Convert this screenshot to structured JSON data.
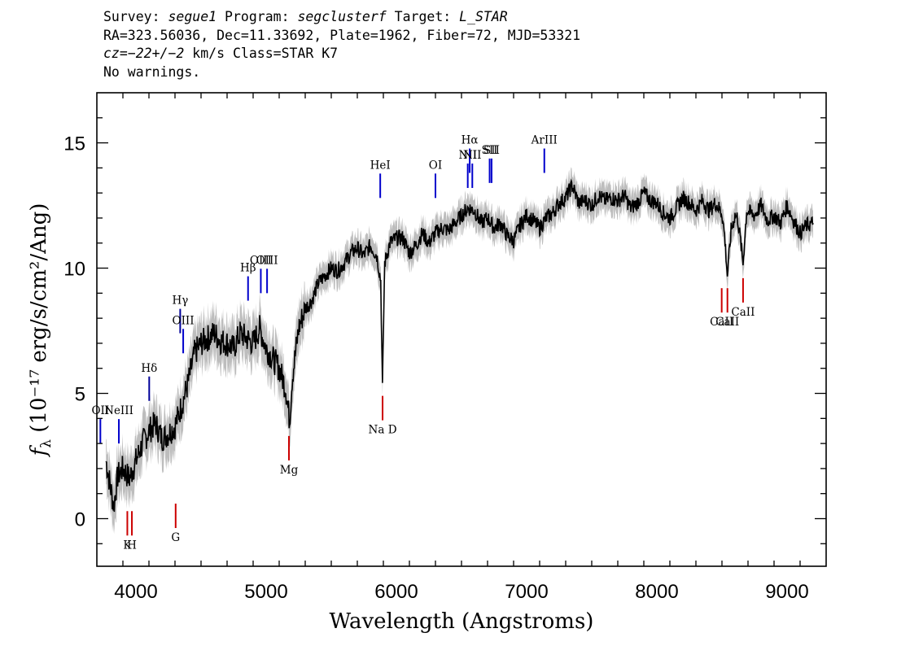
{
  "header": {
    "survey_label": "Survey: ",
    "survey": "segue1",
    "program_label": " Program: ",
    "program": "segclusterf",
    "target_label": " Target: ",
    "target": "L_STAR",
    "line2": "RA=323.56036, Dec=11.33692, Plate=1962, Fiber=72, MJD=53321",
    "cz_label": "cz=",
    "cz_value": "−22+/−2",
    "cz_rest": " km/s Class=STAR K7",
    "line4": "No warnings."
  },
  "chart_data": {
    "type": "line",
    "xlabel": "Wavelength (Angstroms)",
    "ylabel": "fλ (10⁻¹⁷ erg/s/cm²/Ang)",
    "xlim": [
      3700,
      9300
    ],
    "ylim": [
      -1.9,
      17
    ],
    "x_ticks": [
      4000,
      5000,
      6000,
      7000,
      8000,
      9000
    ],
    "y_ticks": [
      0,
      5,
      10,
      15
    ],
    "grid": false,
    "series": [
      {
        "kind": "flux",
        "color": "#000000",
        "error_band_color": "#bdbdbd",
        "x": [
          3770,
          3800,
          3830,
          3860,
          3900,
          3950,
          4000,
          4050,
          4100,
          4150,
          4200,
          4250,
          4300,
          4350,
          4400,
          4450,
          4500,
          4550,
          4600,
          4650,
          4700,
          4750,
          4800,
          4850,
          4900,
          4950,
          5000,
          5050,
          5100,
          5150,
          5180,
          5200,
          5250,
          5300,
          5350,
          5400,
          5450,
          5500,
          5550,
          5600,
          5650,
          5700,
          5750,
          5800,
          5850,
          5880,
          5893,
          5910,
          5950,
          6000,
          6050,
          6100,
          6150,
          6200,
          6250,
          6300,
          6350,
          6400,
          6450,
          6500,
          6550,
          6600,
          6650,
          6700,
          6750,
          6800,
          6850,
          6900,
          6950,
          7000,
          7050,
          7100,
          7150,
          7200,
          7250,
          7300,
          7350,
          7400,
          7450,
          7500,
          7550,
          7600,
          7650,
          7700,
          7750,
          7800,
          7850,
          7900,
          7950,
          8000,
          8050,
          8100,
          8150,
          8200,
          8250,
          8300,
          8350,
          8400,
          8450,
          8500,
          8520,
          8542,
          8570,
          8600,
          8620,
          8640,
          8662,
          8690,
          8750,
          8800,
          8850,
          8900,
          8950,
          9000,
          9050,
          9100,
          9150,
          9200
        ],
        "values": [
          2.3,
          1.4,
          0.5,
          1.7,
          2.0,
          1.6,
          2.3,
          3.0,
          3.5,
          3.8,
          3.2,
          3.4,
          3.7,
          4.5,
          5.4,
          6.6,
          7.0,
          7.2,
          7.4,
          7.1,
          7.0,
          6.8,
          7.4,
          7.2,
          7.0,
          7.6,
          6.8,
          6.4,
          6.0,
          5.2,
          3.9,
          5.6,
          7.6,
          8.4,
          8.7,
          9.4,
          9.7,
          10.0,
          9.9,
          10.2,
          10.6,
          10.8,
          10.5,
          10.9,
          10.5,
          9.5,
          5.2,
          10.2,
          11.0,
          11.2,
          11.2,
          10.6,
          10.9,
          11.4,
          11.0,
          11.4,
          11.6,
          11.5,
          11.8,
          12.1,
          12.4,
          12.3,
          11.8,
          12.0,
          11.6,
          11.8,
          11.3,
          11.1,
          11.7,
          12.1,
          11.9,
          11.6,
          12.0,
          12.2,
          12.6,
          12.8,
          13.3,
          12.6,
          12.7,
          12.5,
          12.9,
          12.7,
          12.8,
          12.7,
          12.9,
          12.4,
          12.6,
          13.0,
          12.7,
          12.6,
          12.2,
          12.0,
          12.4,
          12.8,
          12.6,
          12.3,
          12.7,
          12.3,
          12.6,
          12.2,
          11.3,
          9.7,
          11.5,
          12.1,
          12.0,
          11.2,
          10.2,
          12.3,
          12.1,
          12.5,
          11.9,
          12.1,
          11.8,
          12.5,
          11.9,
          11.4,
          11.7,
          11.8
        ]
      }
    ],
    "emission_lines": [
      {
        "label": "OII",
        "x": 3727,
        "y": 3.0,
        "color": "#0000cc"
      },
      {
        "label": "NeIII",
        "x": 3869,
        "y": 3.0,
        "color": "#0000cc"
      },
      {
        "label": "Hδ",
        "x": 4102,
        "y": 4.7,
        "color": "#000099"
      },
      {
        "label": "Hγ",
        "x": 4340,
        "y": 7.4,
        "color": "#000099"
      },
      {
        "label": "OIII",
        "x": 4363,
        "y": 6.6,
        "color": "#0000cc"
      },
      {
        "label": "Hβ",
        "x": 4861,
        "y": 8.7,
        "color": "#0000cc"
      },
      {
        "label": "OIII",
        "x": 4959,
        "y": 9.0,
        "color": "#0000cc"
      },
      {
        "label": "OIII",
        "x": 5007,
        "y": 9.0,
        "color": "#0000cc"
      },
      {
        "label": "HeI",
        "x": 5876,
        "y": 12.8,
        "color": "#0000cc"
      },
      {
        "label": "OI",
        "x": 6300,
        "y": 12.8,
        "color": "#0000cc"
      },
      {
        "label": "NII",
        "x": 6548,
        "y": 13.2,
        "color": "#0000cc"
      },
      {
        "label": "Hα",
        "x": 6563,
        "y": 13.8,
        "color": "#0000cc"
      },
      {
        "label": "NII",
        "x": 6583,
        "y": 13.2,
        "color": "#0000cc"
      },
      {
        "label": "SII",
        "x": 6716,
        "y": 13.4,
        "color": "#0000cc"
      },
      {
        "label": "SII",
        "x": 6731,
        "y": 13.4,
        "color": "#0000cc"
      },
      {
        "label": "ArIII",
        "x": 7136,
        "y": 13.8,
        "color": "#0000cc"
      }
    ],
    "absorption_lines": [
      {
        "label": "K",
        "x": 3934,
        "y": 0.3,
        "color": "#cc0000"
      },
      {
        "label": "H",
        "x": 3969,
        "y": 0.3,
        "color": "#cc0000"
      },
      {
        "label": "G",
        "x": 4305,
        "y": 0.6,
        "color": "#cc0000"
      },
      {
        "label": "Mg",
        "x": 5175,
        "y": 3.3,
        "color": "#cc0000"
      },
      {
        "label": "Na D",
        "x": 5894,
        "y": 4.9,
        "color": "#cc0000"
      },
      {
        "label": "CaII",
        "x": 8498,
        "y": 9.2,
        "color": "#cc0000"
      },
      {
        "label": "CaII",
        "x": 8542,
        "y": 9.2,
        "color": "#cc0000"
      },
      {
        "label": "CaII",
        "x": 8662,
        "y": 9.6,
        "color": "#cc0000"
      }
    ]
  }
}
